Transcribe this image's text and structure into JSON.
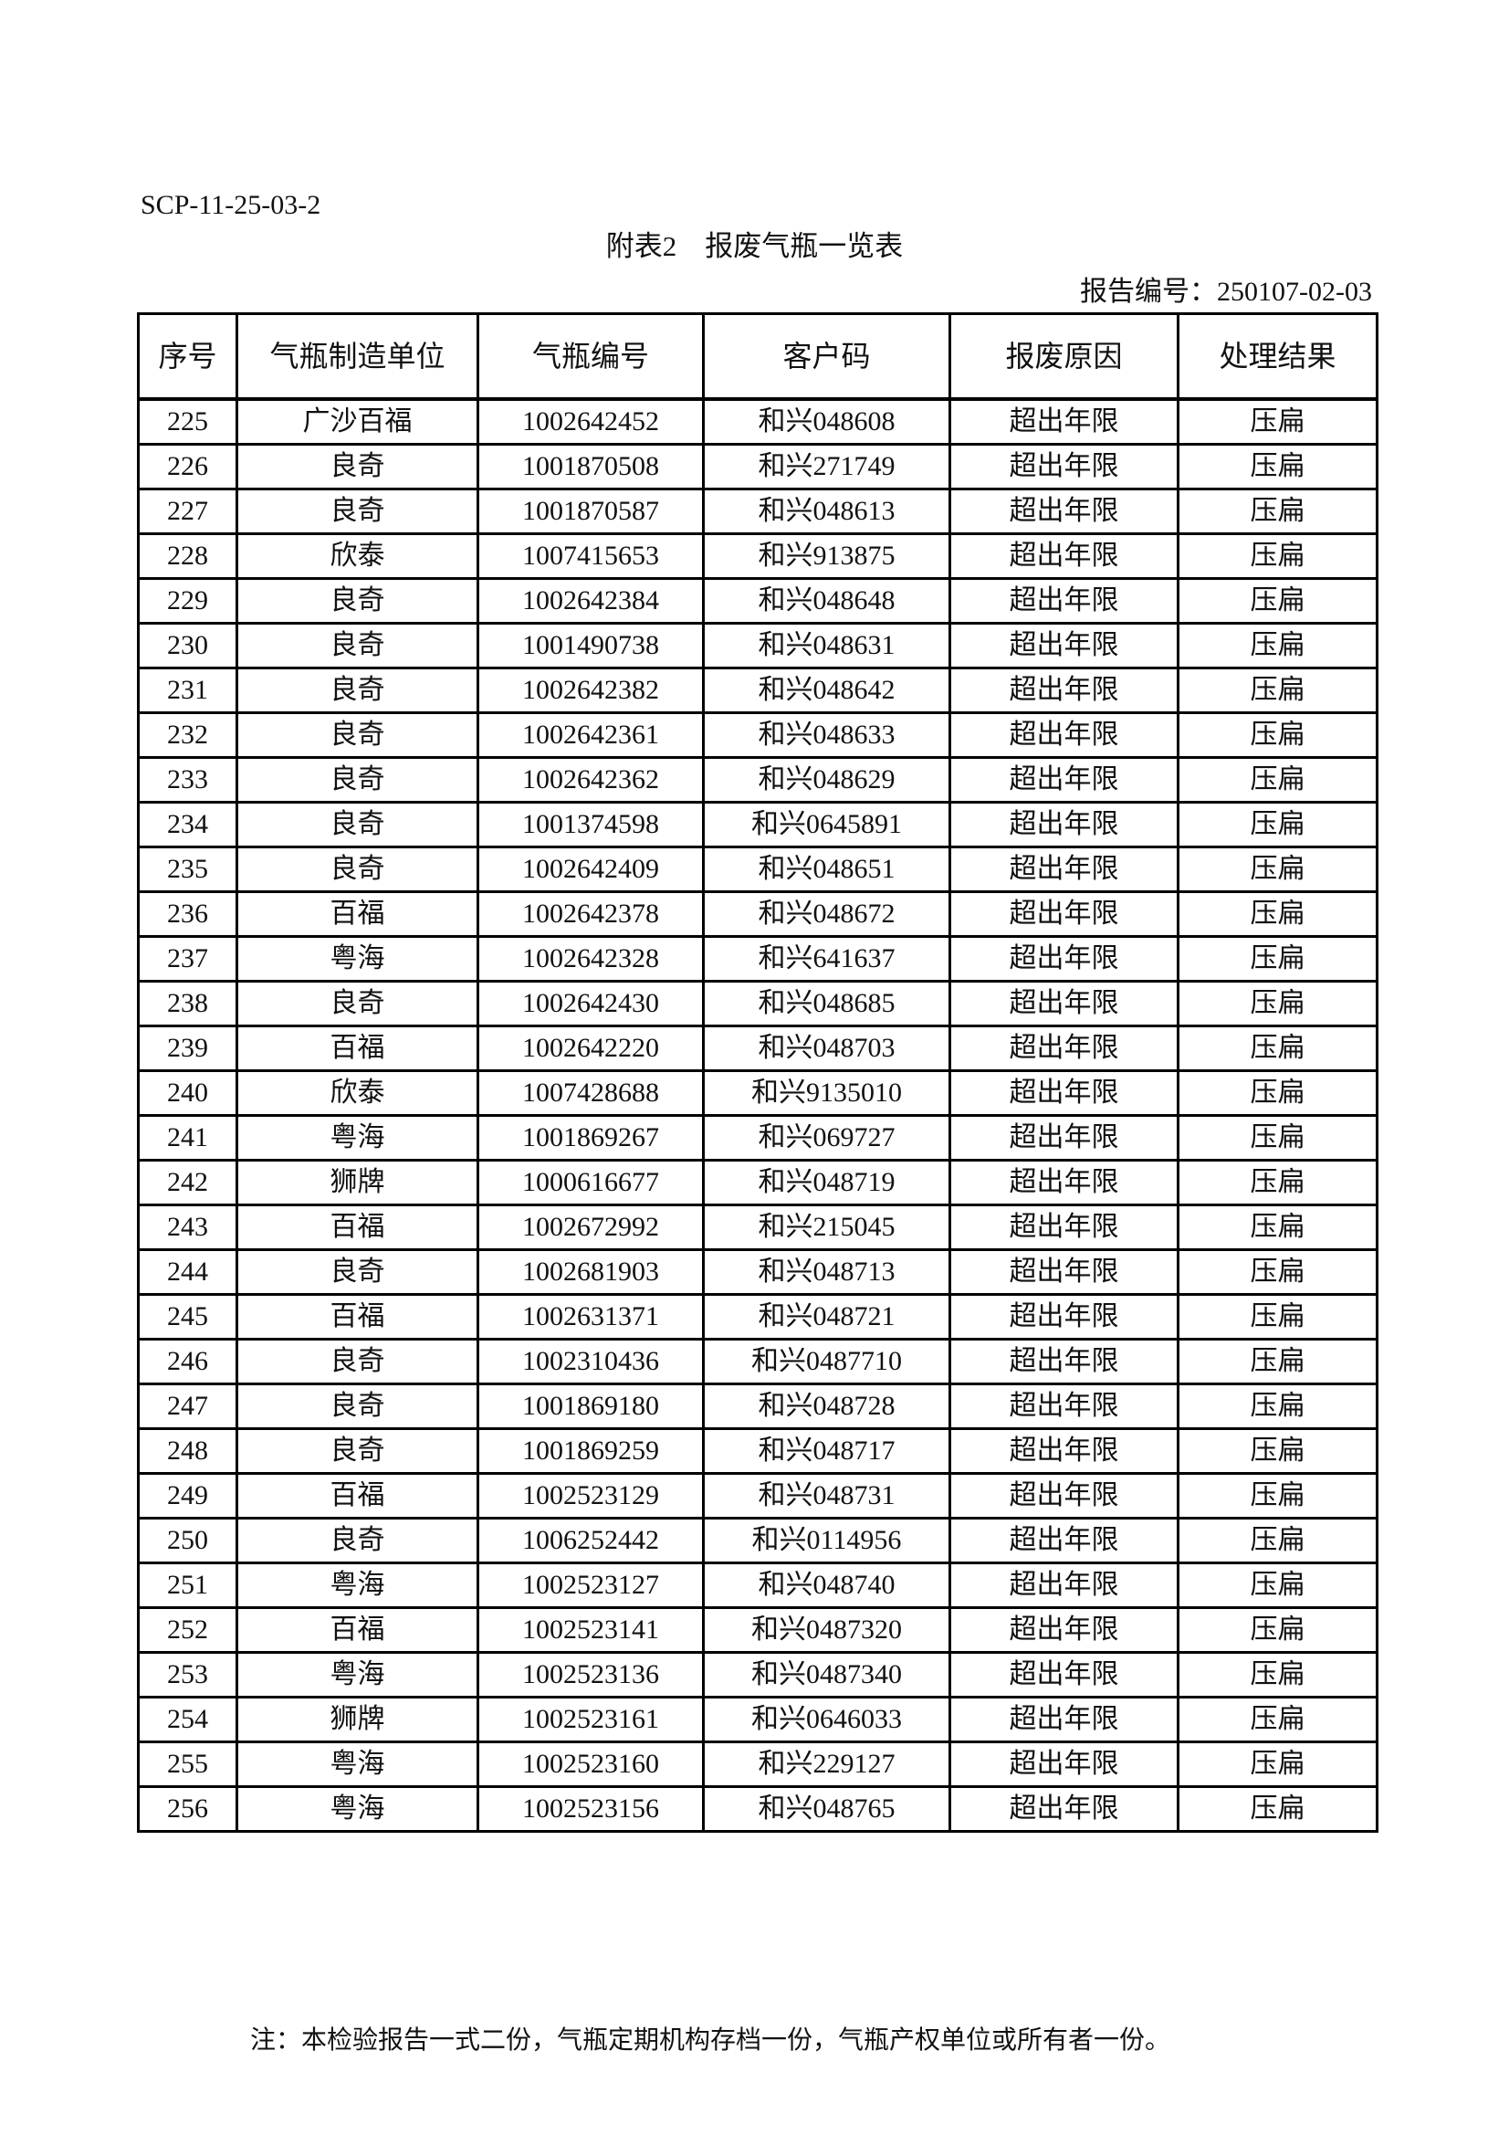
{
  "doc_code": "SCP-11-25-03-2",
  "title": "附表2　报废气瓶一览表",
  "report_no": "报告编号：250107-02-03",
  "columns": [
    "序号",
    "气瓶制造单位",
    "气瓶编号",
    "客户码",
    "报废原因",
    "处理结果"
  ],
  "rows": [
    [
      "225",
      "广沙百福",
      "1002642452",
      "和兴048608",
      "超出年限",
      "压扁"
    ],
    [
      "226",
      "良奇",
      "1001870508",
      "和兴271749",
      "超出年限",
      "压扁"
    ],
    [
      "227",
      "良奇",
      "1001870587",
      "和兴048613",
      "超出年限",
      "压扁"
    ],
    [
      "228",
      "欣泰",
      "1007415653",
      "和兴913875",
      "超出年限",
      "压扁"
    ],
    [
      "229",
      "良奇",
      "1002642384",
      "和兴048648",
      "超出年限",
      "压扁"
    ],
    [
      "230",
      "良奇",
      "1001490738",
      "和兴048631",
      "超出年限",
      "压扁"
    ],
    [
      "231",
      "良奇",
      "1002642382",
      "和兴048642",
      "超出年限",
      "压扁"
    ],
    [
      "232",
      "良奇",
      "1002642361",
      "和兴048633",
      "超出年限",
      "压扁"
    ],
    [
      "233",
      "良奇",
      "1002642362",
      "和兴048629",
      "超出年限",
      "压扁"
    ],
    [
      "234",
      "良奇",
      "1001374598",
      "和兴0645891",
      "超出年限",
      "压扁"
    ],
    [
      "235",
      "良奇",
      "1002642409",
      "和兴048651",
      "超出年限",
      "压扁"
    ],
    [
      "236",
      "百福",
      "1002642378",
      "和兴048672",
      "超出年限",
      "压扁"
    ],
    [
      "237",
      "粤海",
      "1002642328",
      "和兴641637",
      "超出年限",
      "压扁"
    ],
    [
      "238",
      "良奇",
      "1002642430",
      "和兴048685",
      "超出年限",
      "压扁"
    ],
    [
      "239",
      "百福",
      "1002642220",
      "和兴048703",
      "超出年限",
      "压扁"
    ],
    [
      "240",
      "欣泰",
      "1007428688",
      "和兴9135010",
      "超出年限",
      "压扁"
    ],
    [
      "241",
      "粤海",
      "1001869267",
      "和兴069727",
      "超出年限",
      "压扁"
    ],
    [
      "242",
      "狮牌",
      "1000616677",
      "和兴048719",
      "超出年限",
      "压扁"
    ],
    [
      "243",
      "百福",
      "1002672992",
      "和兴215045",
      "超出年限",
      "压扁"
    ],
    [
      "244",
      "良奇",
      "1002681903",
      "和兴048713",
      "超出年限",
      "压扁"
    ],
    [
      "245",
      "百福",
      "1002631371",
      "和兴048721",
      "超出年限",
      "压扁"
    ],
    [
      "246",
      "良奇",
      "1002310436",
      "和兴0487710",
      "超出年限",
      "压扁"
    ],
    [
      "247",
      "良奇",
      "1001869180",
      "和兴048728",
      "超出年限",
      "压扁"
    ],
    [
      "248",
      "良奇",
      "1001869259",
      "和兴048717",
      "超出年限",
      "压扁"
    ],
    [
      "249",
      "百福",
      "1002523129",
      "和兴048731",
      "超出年限",
      "压扁"
    ],
    [
      "250",
      "良奇",
      "1006252442",
      "和兴0114956",
      "超出年限",
      "压扁"
    ],
    [
      "251",
      "粤海",
      "1002523127",
      "和兴048740",
      "超出年限",
      "压扁"
    ],
    [
      "252",
      "百福",
      "1002523141",
      "和兴0487320",
      "超出年限",
      "压扁"
    ],
    [
      "253",
      "粤海",
      "1002523136",
      "和兴0487340",
      "超出年限",
      "压扁"
    ],
    [
      "254",
      "狮牌",
      "1002523161",
      "和兴0646033",
      "超出年限",
      "压扁"
    ],
    [
      "255",
      "粤海",
      "1002523160",
      "和兴229127",
      "超出年限",
      "压扁"
    ],
    [
      "256",
      "粤海",
      "1002523156",
      "和兴048765",
      "超出年限",
      "压扁"
    ]
  ],
  "footnote": "注：本检验报告一式二份，气瓶定期机构存档一份，气瓶产权单位或所有者一份。"
}
